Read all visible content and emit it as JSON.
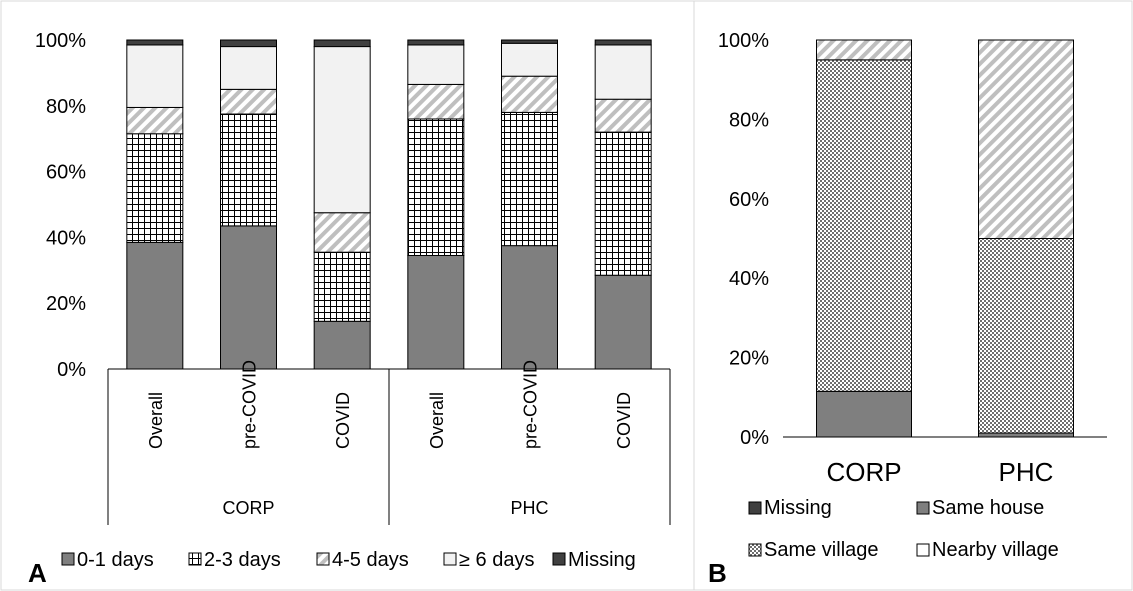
{
  "chart_data": [
    {
      "panel_label": "A",
      "type": "bar",
      "stacked": true,
      "ylim": [
        0,
        100
      ],
      "yticks": [
        "0%",
        "20%",
        "40%",
        "60%",
        "80%",
        "100%"
      ],
      "groups": [
        {
          "label": "CORP",
          "categories": [
            "Overall",
            "pre-COVID",
            "COVID"
          ]
        },
        {
          "label": "PHC",
          "categories": [
            "Overall",
            "pre-COVID",
            "COVID"
          ]
        }
      ],
      "series": [
        {
          "name": "0-1 days",
          "values": [
            38.5,
            43.5,
            14.5,
            34.5,
            37.5,
            28.5
          ]
        },
        {
          "name": "2-3 days",
          "values": [
            33,
            34,
            21,
            41.5,
            40.5,
            43.5
          ]
        },
        {
          "name": "4-5 days",
          "values": [
            8,
            7.5,
            12,
            10.5,
            11,
            10
          ]
        },
        {
          "name": "≥ 6 days",
          "values": [
            19,
            13,
            50.5,
            12,
            10,
            16.5
          ]
        },
        {
          "name": "Missing",
          "values": [
            1.5,
            2,
            2,
            1.5,
            1,
            1.5
          ]
        }
      ],
      "legend_position": "bottom",
      "grid": false
    },
    {
      "panel_label": "B",
      "type": "bar",
      "stacked": true,
      "ylim": [
        0,
        100
      ],
      "yticks": [
        "0%",
        "20%",
        "40%",
        "60%",
        "80%",
        "100%"
      ],
      "categories": [
        "CORP",
        "PHC"
      ],
      "series": [
        {
          "name": "Missing",
          "values": [
            0,
            0
          ]
        },
        {
          "name": "Same house",
          "values": [
            11.5,
            1
          ]
        },
        {
          "name": "Same village",
          "values": [
            83.5,
            49
          ]
        },
        {
          "name": "Nearby village",
          "values": [
            5,
            50
          ]
        }
      ],
      "legend_position": "bottom",
      "grid": false
    }
  ],
  "colors": {
    "solid_dark": "#7f7f7f",
    "missing": "#404040",
    "light_fill": "#f2f2f2",
    "stroke": "#000000"
  }
}
